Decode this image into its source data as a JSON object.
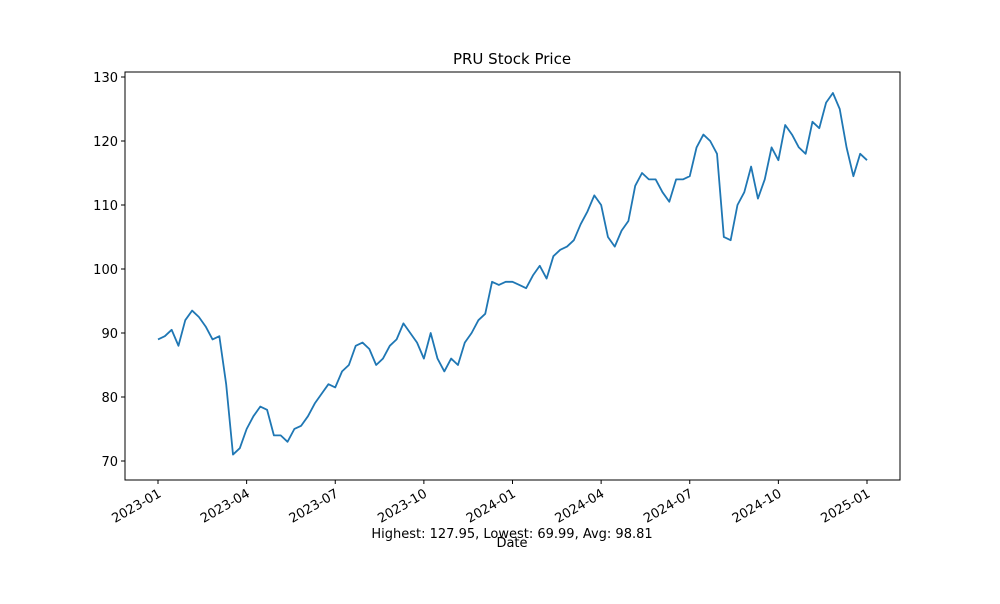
{
  "chart_data": {
    "type": "line",
    "title": "PRU Stock Price",
    "xlabel": "Date",
    "annotation": "Highest: 127.95, Lowest: 69.99, Avg: 98.81",
    "color": "#1f77b4",
    "categories": [
      "2023-01",
      null,
      null,
      null,
      null,
      null,
      null,
      null,
      null,
      null,
      null,
      null,
      null,
      "2023-04",
      null,
      null,
      null,
      null,
      null,
      null,
      null,
      null,
      null,
      null,
      null,
      null,
      "2023-07",
      null,
      null,
      null,
      null,
      null,
      null,
      null,
      null,
      null,
      null,
      null,
      null,
      "2023-10",
      null,
      null,
      null,
      null,
      null,
      null,
      null,
      null,
      null,
      null,
      null,
      null,
      "2024-01",
      null,
      null,
      null,
      null,
      null,
      null,
      null,
      null,
      null,
      null,
      null,
      null,
      "2024-04",
      null,
      null,
      null,
      null,
      null,
      null,
      null,
      null,
      null,
      null,
      null,
      null,
      "2024-07",
      null,
      null,
      null,
      null,
      null,
      null,
      null,
      null,
      null,
      null,
      null,
      null,
      "2024-10",
      null,
      null,
      null,
      null,
      null,
      null,
      null,
      null,
      null,
      null,
      null,
      null,
      "2025-01"
    ],
    "values": [
      89,
      89.5,
      90.5,
      88,
      92,
      93.5,
      92.5,
      91,
      89,
      89.5,
      82,
      71,
      72,
      75,
      77,
      78.5,
      78,
      74,
      74,
      73,
      75,
      75.5,
      77,
      79,
      80.5,
      82,
      81.5,
      84,
      85,
      88,
      88.5,
      87.5,
      85,
      86,
      88,
      89,
      91.5,
      90,
      88.5,
      86,
      90,
      86,
      84,
      86,
      85,
      88.5,
      90,
      92,
      93,
      98,
      97.5,
      98,
      98,
      97.5,
      97,
      99,
      100.5,
      98.5,
      102,
      103,
      103.5,
      104.5,
      107,
      109,
      111.5,
      110,
      105,
      103.5,
      106,
      107.5,
      113,
      115,
      114,
      114,
      112,
      110.5,
      114,
      114,
      114.5,
      119,
      121,
      120,
      118,
      105,
      104.5,
      110,
      112,
      116,
      111,
      114,
      119,
      117,
      122.5,
      121,
      119,
      118,
      123,
      122,
      126,
      127.5,
      125,
      119,
      114.5,
      118,
      117
    ],
    "ylim": [
      67.03,
      130.78
    ],
    "yticks": [
      70,
      80,
      90,
      100,
      110,
      120,
      130
    ]
  }
}
